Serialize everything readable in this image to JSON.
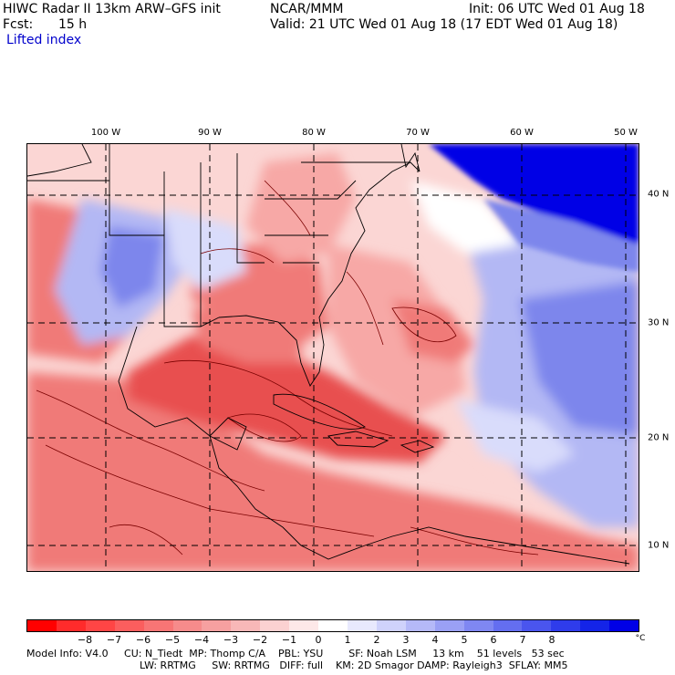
{
  "header": {
    "title": "HIWC Radar II 13km ARW–GFS init",
    "org": "NCAR/MMM",
    "init": "Init: 06 UTC Wed 01 Aug 18",
    "fcst_label": "Fcst:",
    "fcst_value": "15 h",
    "valid": "Valid: 21 UTC Wed 01 Aug 18 (17 EDT Wed 01 Aug 18)",
    "field": "Lifted index"
  },
  "map": {
    "lon_labels": [
      "100 W",
      "90 W",
      "80 W",
      "70 W",
      "60 W",
      "50 W"
    ],
    "lat_labels": [
      "40 N",
      "30 N",
      "20 N",
      "10 N"
    ],
    "colors": {
      "deep_red": "#e8504f",
      "red": "#f07a78",
      "pink": "#f7a8a6",
      "light_pink": "#fbd6d4",
      "white": "#ffffff",
      "light_blue": "#d9dcfb",
      "blue": "#b3b8f4",
      "mid_blue": "#7d86ec",
      "dark_blue": "#0000e6"
    }
  },
  "colorbar": {
    "labels": [
      "−8",
      "−7",
      "−6",
      "−5",
      "−4",
      "−3",
      "−2",
      "−1",
      "0",
      "1",
      "2",
      "3",
      "4",
      "5",
      "6",
      "7",
      "8"
    ],
    "unit": "°C",
    "colors": [
      "#ff0000",
      "#ff2b2b",
      "#ff4545",
      "#fb5e5e",
      "#f87575",
      "#f68b8b",
      "#f6a0a0",
      "#f8b8b8",
      "#fbd1d1",
      "#fde8e8",
      "#ffffff",
      "#e8e9fd",
      "#cfd2fb",
      "#b5b9f8",
      "#9aa0f5",
      "#7f87f2",
      "#646ef0",
      "#4a55ee",
      "#2f3ceb",
      "#1424e8",
      "#0000e6"
    ]
  },
  "footer": {
    "line1": "Model Info: V4.0     CU: N_Tiedt  MP: Thomp C/A    PBL: YSU        SF: Noah LSM     13 km    51 levels   53 sec",
    "line2": "LW: RRTMG     SW: RRTMG   DIFF: full    KM: 2D Smagor DAMP: Rayleigh3  SFLAY: MM5"
  }
}
